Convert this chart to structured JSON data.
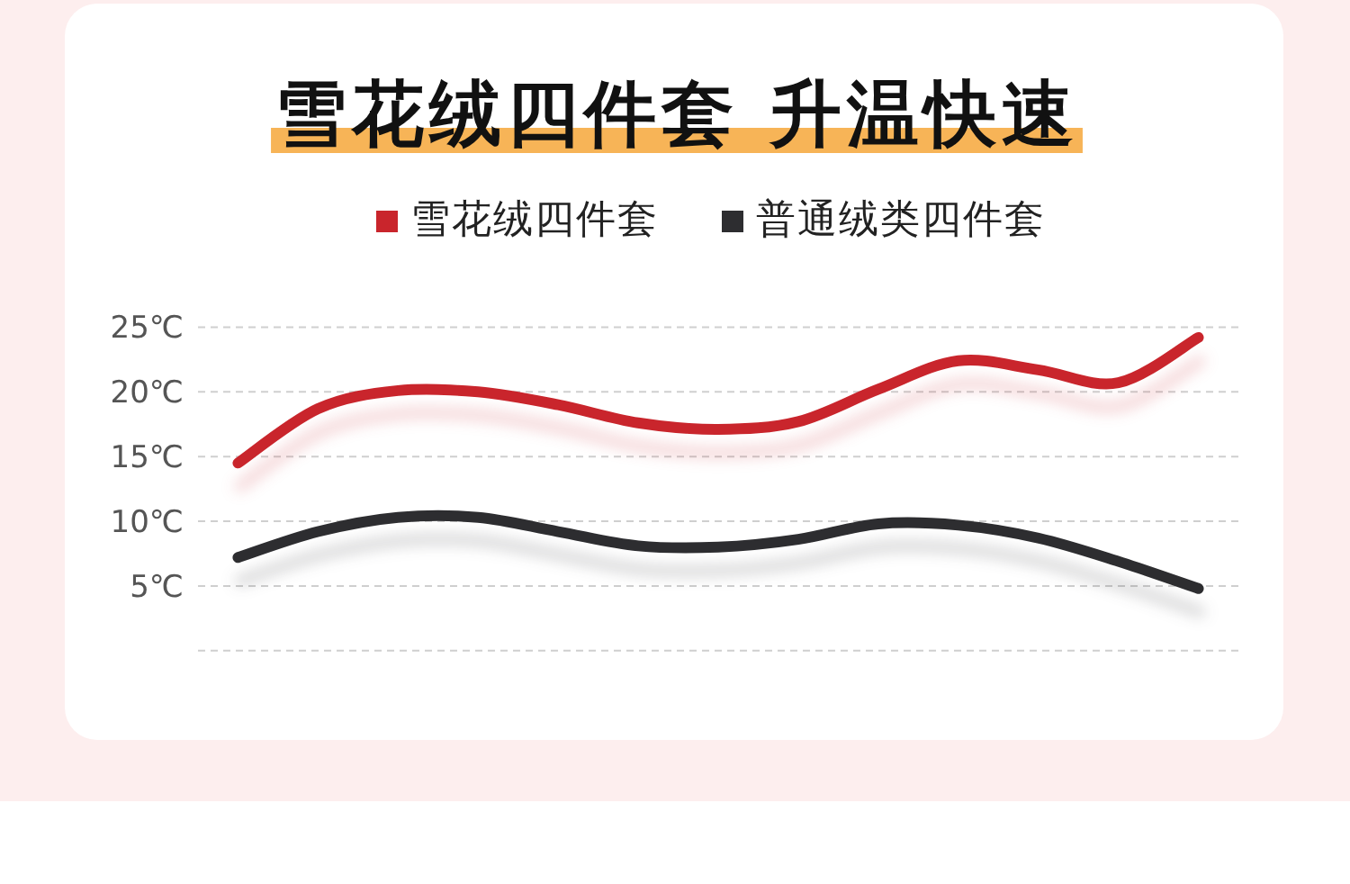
{
  "chart_data": {
    "type": "line",
    "title": "雪花绒四件套 升温快速",
    "categories": [
      null,
      null,
      null,
      null,
      null,
      null,
      null,
      null,
      null,
      null,
      null,
      null,
      null
    ],
    "series": [
      {
        "name": "雪花绒四件套",
        "color": "#c9252c",
        "values": [
          14.5,
          18.7,
          20.1,
          20.0,
          19.0,
          17.6,
          17.1,
          17.7,
          20.2,
          22.4,
          21.7,
          20.7,
          24.2
        ]
      },
      {
        "name": "普通绒类四件套",
        "color": "#2d2d30",
        "values": [
          7.2,
          9.2,
          10.3,
          10.3,
          9.2,
          8.1,
          8.0,
          8.6,
          9.8,
          9.7,
          8.7,
          6.9,
          4.8
        ]
      }
    ],
    "ylim": [
      0,
      25
    ],
    "yticks": [
      {
        "value": 0,
        "label": null
      },
      {
        "value": 5,
        "label": "5℃"
      },
      {
        "value": 10,
        "label": "10℃"
      },
      {
        "value": 15,
        "label": "15℃"
      },
      {
        "value": 20,
        "label": "20℃"
      },
      {
        "value": 25,
        "label": "25℃"
      }
    ],
    "grid": "y",
    "legend": "top",
    "tick_labels": "y",
    "line_style": "solid"
  }
}
